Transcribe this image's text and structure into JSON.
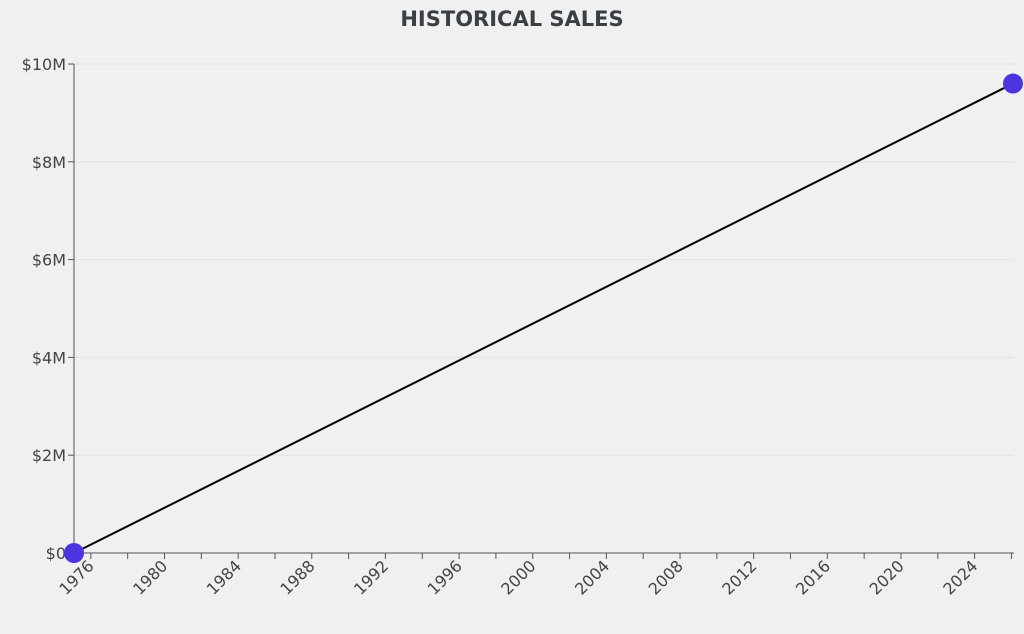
{
  "chart_data": {
    "type": "line",
    "title": "HISTORICAL SALES",
    "xlabel": "",
    "ylabel": "",
    "x_type": "date",
    "xlim": [
      "1975-02-01",
      "2026-02-01"
    ],
    "ylim": [
      0,
      10000000
    ],
    "y_ticks": [
      0,
      2000000,
      4000000,
      6000000,
      8000000,
      10000000
    ],
    "y_tick_labels": [
      "$0",
      "$2M",
      "$4M",
      "$6M",
      "$8M",
      "$10M"
    ],
    "x_major_ticks": [
      1976,
      1980,
      1984,
      1988,
      1992,
      1996,
      2000,
      2004,
      2008,
      2012,
      2016,
      2020,
      2024
    ],
    "x_tick_labels": [
      "1976",
      "1980",
      "1984",
      "1988",
      "1992",
      "1996",
      "2000",
      "2004",
      "2008",
      "2012",
      "2016",
      "2020",
      "2024"
    ],
    "x_minor_tick_step_years": 2,
    "grid": "horizontal",
    "series": [
      {
        "points": [
          {
            "x": "1975-02-01",
            "y": 0
          },
          {
            "x": "2026-02-01",
            "y": 9600000
          }
        ],
        "line_color": "#000000",
        "marker_color": "#4a35e0"
      }
    ]
  }
}
